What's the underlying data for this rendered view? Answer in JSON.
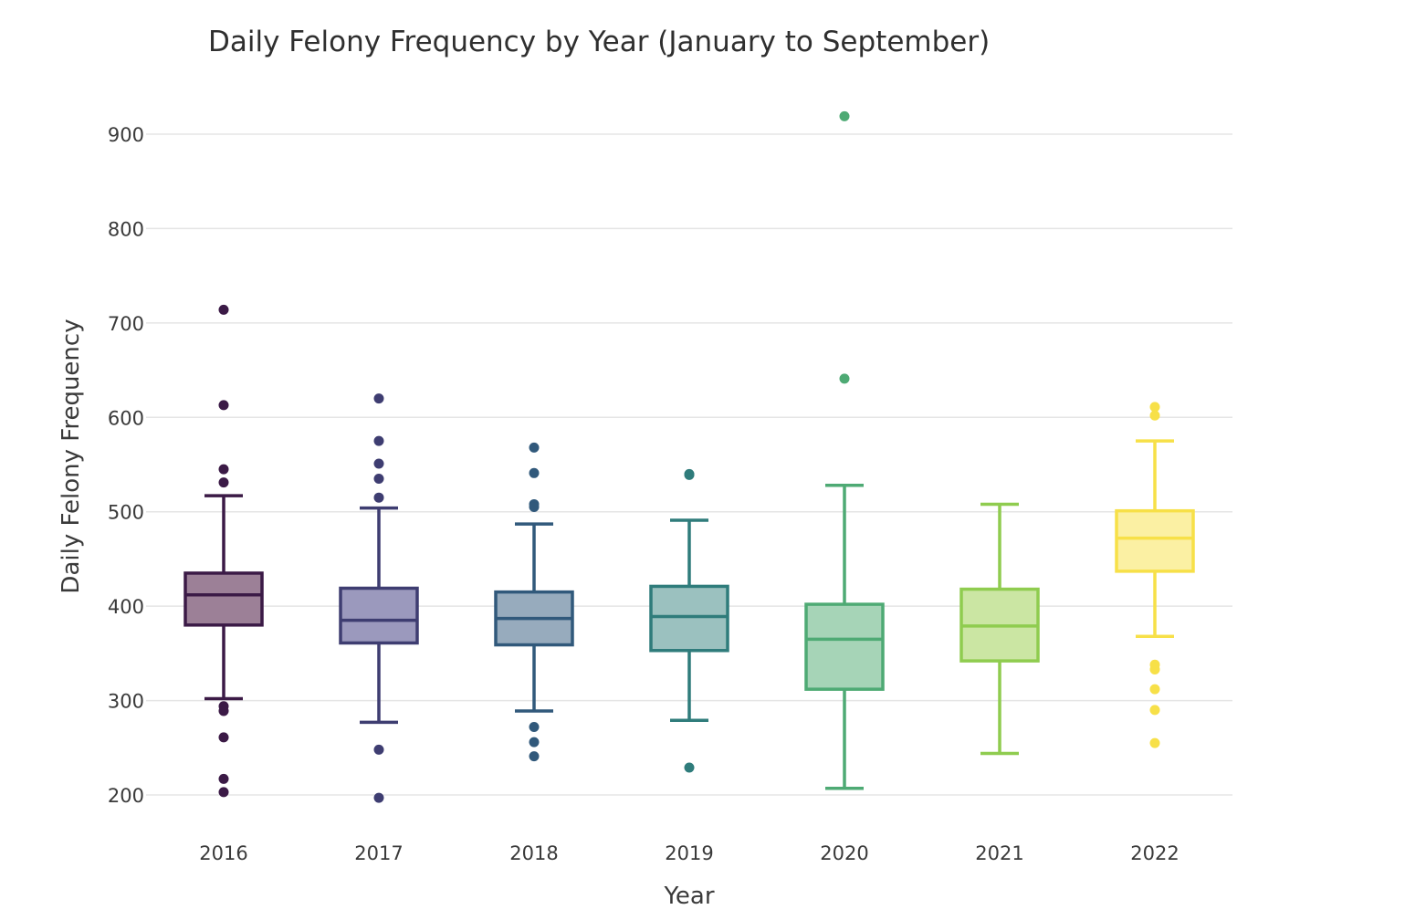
{
  "chart_data": {
    "type": "box",
    "title": "Daily Felony Frequency by Year (January to September)",
    "xlabel": "Year",
    "ylabel": "Daily Felony Frequency",
    "ylim": [
      160,
      960
    ],
    "yticks": [
      200,
      300,
      400,
      500,
      600,
      700,
      800,
      900
    ],
    "grid": true,
    "legend": "none",
    "categories": [
      "2016",
      "2017",
      "2018",
      "2019",
      "2020",
      "2021",
      "2022"
    ],
    "boxes": [
      {
        "category": "2016",
        "color": "#3b1a46",
        "fill": "#9c8097",
        "lower_whisker": 302,
        "q1": 380,
        "median": 412,
        "q3": 435,
        "upper_whisker": 517,
        "outliers": [
          714,
          613,
          545,
          531,
          294,
          289,
          261,
          217,
          203
        ]
      },
      {
        "category": "2017",
        "color": "#3e3d71",
        "fill": "#9b99bd",
        "lower_whisker": 277,
        "q1": 361,
        "median": 385,
        "q3": 419,
        "upper_whisker": 504,
        "outliers": [
          620,
          575,
          551,
          535,
          515,
          248,
          197
        ]
      },
      {
        "category": "2018",
        "color": "#31597b",
        "fill": "#97abbd",
        "lower_whisker": 289,
        "q1": 359,
        "median": 387,
        "q3": 415,
        "upper_whisker": 487,
        "outliers": [
          568,
          541,
          508,
          505,
          272,
          256,
          241
        ]
      },
      {
        "category": "2019",
        "color": "#2f7c7b",
        "fill": "#9bc1bf",
        "lower_whisker": 279,
        "q1": 353,
        "median": 389,
        "q3": 421,
        "upper_whisker": 491,
        "outliers": [
          540,
          539,
          229
        ]
      },
      {
        "category": "2020",
        "color": "#4eaa74",
        "fill": "#a6d4b7",
        "lower_whisker": 207,
        "q1": 312,
        "median": 365,
        "q3": 402,
        "upper_whisker": 528,
        "outliers": [
          919,
          641
        ]
      },
      {
        "category": "2021",
        "color": "#8fcc4f",
        "fill": "#cbe6a3",
        "lower_whisker": 244,
        "q1": 342,
        "median": 379,
        "q3": 418,
        "upper_whisker": 508,
        "outliers": []
      },
      {
        "category": "2022",
        "color": "#f7e048",
        "fill": "#fbf0a3",
        "lower_whisker": 368,
        "q1": 437,
        "median": 472,
        "q3": 501,
        "upper_whisker": 575,
        "outliers": [
          611,
          602,
          338,
          333,
          312,
          290,
          255
        ]
      }
    ]
  }
}
